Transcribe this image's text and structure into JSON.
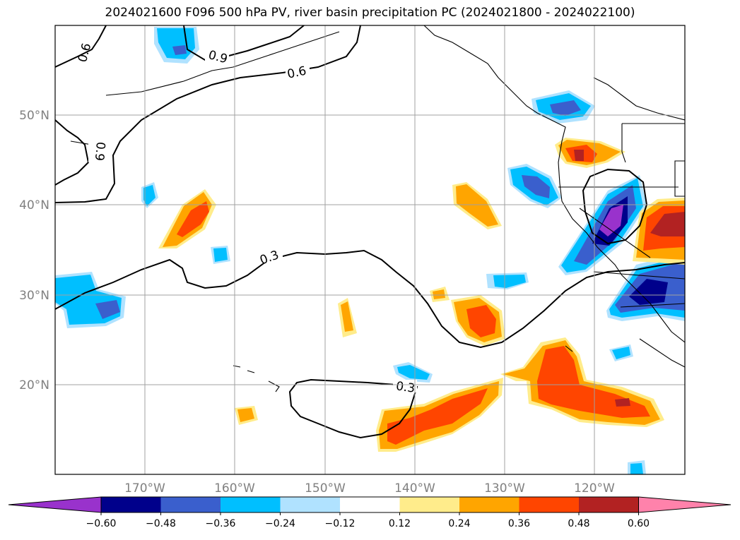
{
  "title": "2024021600 F096 500 hPa PV, river basin precipitation PC (2024021800 - 2024022100)",
  "lat_labels": [
    "50°N",
    "40°N",
    "30°N",
    "20°N"
  ],
  "lon_labels": [
    "170°W",
    "160°W",
    "150°W",
    "140°W",
    "130°W",
    "120°W"
  ],
  "colorbar": {
    "ticks": [
      "−0.60",
      "−0.48",
      "−0.36",
      "−0.24",
      "−0.12",
      "0.12",
      "0.24",
      "0.36",
      "0.48",
      "0.60"
    ],
    "colors": [
      "#9932cc",
      "#00008b",
      "#3a5fcd",
      "#00bfff",
      "#b0e2ff",
      "#ffffff",
      "#ffec8b",
      "#ffa500",
      "#ff4500",
      "#b22222",
      "#ff82ab"
    ]
  },
  "contour_labels": {
    "c06_a": "0.6",
    "c09_a": "0.9",
    "c06_b": "0.6",
    "c09_b": "0.9",
    "c03_a": "0.3",
    "c03_b": "0.3"
  }
}
